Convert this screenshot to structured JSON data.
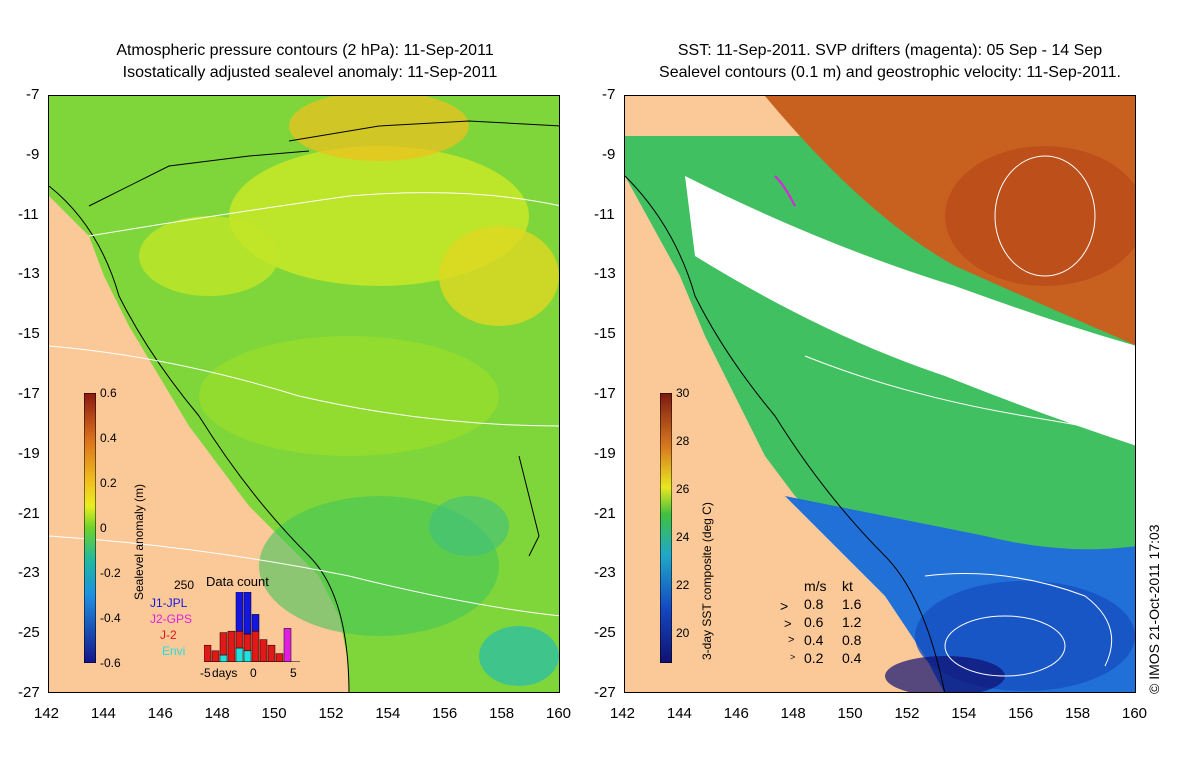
{
  "left": {
    "title_line1": "Atmospheric pressure contours (2 hPa): 11-Sep-2011",
    "title_line2": "Isostatically adjusted sealevel anomaly: 11-Sep-2011",
    "colorbar": {
      "label": "Sealevel anomaly (m)",
      "ticks": [
        "0.6",
        "0.4",
        "0.2",
        "0",
        "-0.2",
        "-0.4",
        "-0.6"
      ],
      "colors": [
        "#8b1a10",
        "#c64a1a",
        "#e98a20",
        "#f2c01e",
        "#e8ee20",
        "#b8e61e",
        "#6fd12a",
        "#2ab84a",
        "#20b8a0",
        "#1e8ee0",
        "#1a50c8",
        "#14148a"
      ]
    },
    "data_count": {
      "title": "Data count",
      "max_label": "250",
      "missions": [
        {
          "name": "J1-JPL",
          "color": "#1515e0"
        },
        {
          "name": "J2-GPS",
          "color": "#e020e0"
        },
        {
          "name": "J-2",
          "color": "#e01818"
        },
        {
          "name": "Envi",
          "color": "#20e0e0"
        }
      ],
      "xaxis_label": "days",
      "xticks": [
        "-5",
        "0",
        "5"
      ],
      "bars": [
        {
          "day": -5,
          "J1": 0,
          "J2": 0,
          "J2b": 60,
          "Envi": 0
        },
        {
          "day": -4,
          "J1": 0,
          "J2": 0,
          "J2b": 40,
          "Envi": 0
        },
        {
          "day": -3,
          "J1": 0,
          "J2": 0,
          "J2b": 80,
          "Envi": 25
        },
        {
          "day": -2,
          "J1": 0,
          "J2": 0,
          "J2b": 110,
          "Envi": 0
        },
        {
          "day": -1,
          "J1": 150,
          "J2": 0,
          "J2b": 60,
          "Envi": 50
        },
        {
          "day": 0,
          "J1": 150,
          "J2": 0,
          "J2b": 60,
          "Envi": 40
        },
        {
          "day": 1,
          "J1": 60,
          "J2": 0,
          "J2b": 110,
          "Envi": 0
        },
        {
          "day": 2,
          "J1": 0,
          "J2": 0,
          "J2b": 80,
          "Envi": 0
        },
        {
          "day": 3,
          "J1": 0,
          "J2": 0,
          "J2b": 60,
          "Envi": 0
        },
        {
          "day": 4,
          "J1": 0,
          "J2": 0,
          "J2b": 30,
          "Envi": 0
        },
        {
          "day": 5,
          "J1": 0,
          "J2": 120,
          "J2b": 0,
          "Envi": 0
        }
      ]
    }
  },
  "right": {
    "title_line1": "SST: 11-Sep-2011. SVP drifters (magenta): 05 Sep - 14 Sep",
    "title_line2": "Sealevel contours (0.1 m) and geostrophic velocity: 11-Sep-2011.",
    "colorbar": {
      "label": "3-day SST composite (deg C)",
      "ticks": [
        "30",
        "28",
        "26",
        "24",
        "22",
        "20"
      ],
      "colors": [
        "#7a1a10",
        "#b8401a",
        "#d87a20",
        "#e8b020",
        "#e8e820",
        "#a8dc28",
        "#40c040",
        "#20b080",
        "#20a8c8",
        "#1a80e0",
        "#1448c0",
        "#101070"
      ]
    },
    "velocity_legend": {
      "headers": [
        "m/s",
        "kt"
      ],
      "rows": [
        {
          "ms": "0.8",
          "kt": "1.6"
        },
        {
          "ms": "0.6",
          "kt": "1.2"
        },
        {
          "ms": "0.4",
          "kt": "0.8"
        },
        {
          "ms": "0.2",
          "kt": "0.4"
        }
      ]
    },
    "copyright": "© IMOS 21-Oct-2011 17:03"
  },
  "axes": {
    "lat_ticks": [
      "-7",
      "-9",
      "-11",
      "-13",
      "-15",
      "-17",
      "-19",
      "-21",
      "-23",
      "-25",
      "-27"
    ],
    "lon_ticks": [
      "142",
      "144",
      "146",
      "148",
      "150",
      "152",
      "154",
      "156",
      "158",
      "160"
    ]
  }
}
